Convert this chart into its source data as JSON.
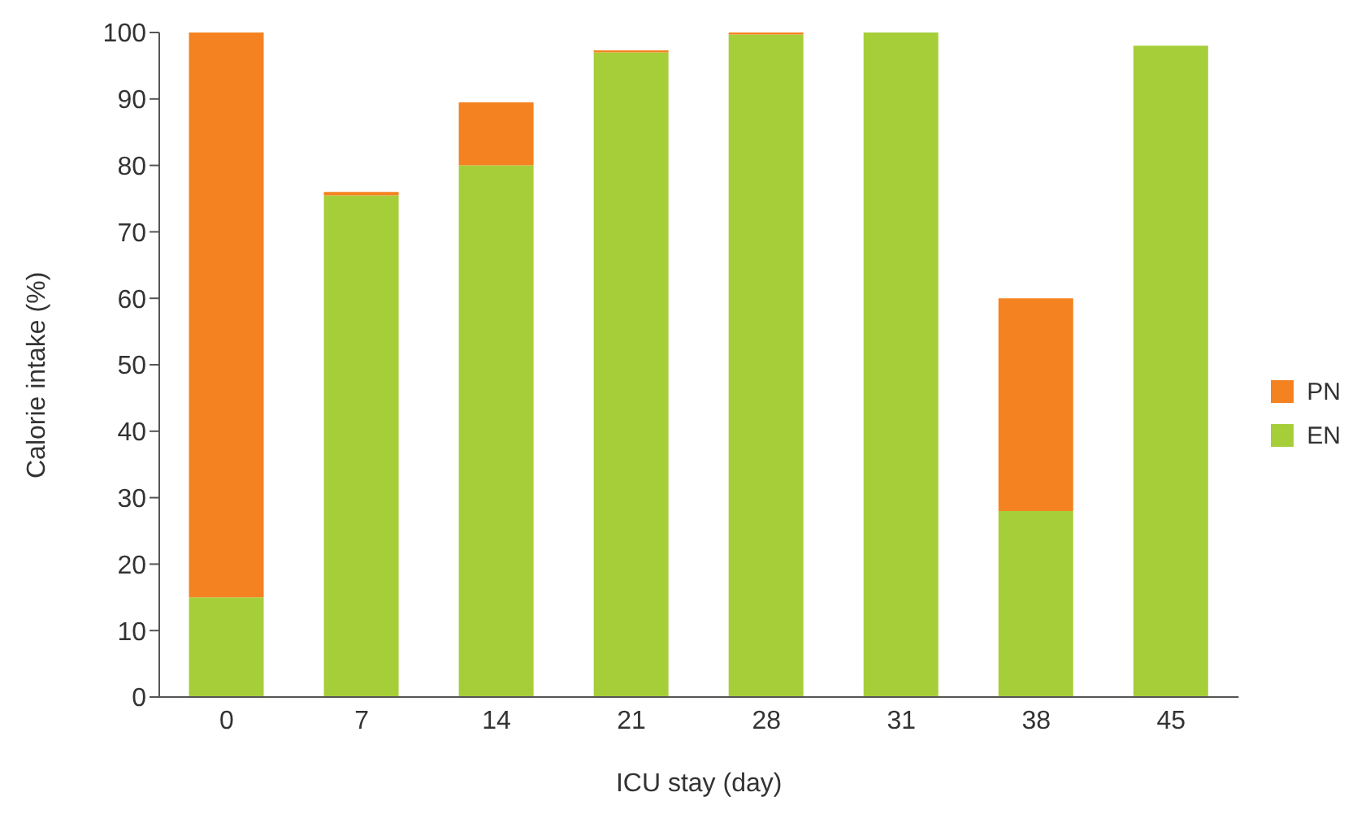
{
  "chart_data": {
    "type": "bar",
    "stacked": true,
    "xlabel": "ICU stay (day)",
    "ylabel": "Calorie intake (%)",
    "categories": [
      "0",
      "7",
      "14",
      "21",
      "28",
      "31",
      "38",
      "45"
    ],
    "series": [
      {
        "name": "EN",
        "color": "#a6ce39",
        "values": [
          15,
          75.5,
          80,
          97,
          99.7,
          100,
          28,
          98
        ]
      },
      {
        "name": "PN",
        "color": "#f58220",
        "values": [
          85,
          0.5,
          9.5,
          0.3,
          0.3,
          0,
          32,
          0
        ]
      }
    ],
    "ylim": [
      0,
      100
    ],
    "yticks": [
      0,
      10,
      20,
      30,
      40,
      50,
      60,
      70,
      80,
      90,
      100
    ],
    "grid": false,
    "legend": "right"
  }
}
